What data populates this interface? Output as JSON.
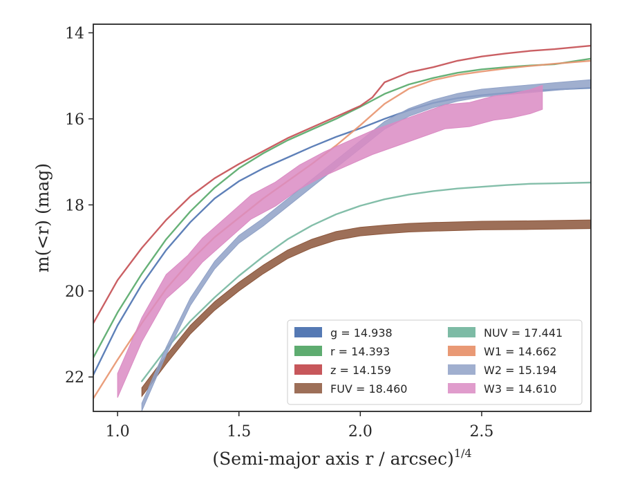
{
  "chart_data": {
    "type": "line",
    "title": "",
    "xlabel": "(Semi-major axis r / arcsec)",
    "xlabel_superscript": "1/4",
    "ylabel": "m(<r) (mag)",
    "xlim": [
      0.9,
      2.95
    ],
    "ylim": [
      22.8,
      13.8
    ],
    "y_inverted": true,
    "x_ticks": [
      1.0,
      1.5,
      2.0,
      2.5
    ],
    "x_tick_labels": [
      "1.0",
      "1.5",
      "2.0",
      "2.5"
    ],
    "y_ticks": [
      14,
      16,
      18,
      20,
      22
    ],
    "y_tick_labels": [
      "14",
      "16",
      "18",
      "20",
      "22"
    ],
    "grid": false,
    "legend_position": "lower-right",
    "legend_columns": 2,
    "series": [
      {
        "name": "g",
        "legend": "g = 14.938",
        "color": "#4c72b0",
        "style": "line",
        "points": [
          [
            0.9,
            21.95
          ],
          [
            1.0,
            20.8
          ],
          [
            1.1,
            19.85
          ],
          [
            1.2,
            19.05
          ],
          [
            1.3,
            18.4
          ],
          [
            1.4,
            17.85
          ],
          [
            1.5,
            17.45
          ],
          [
            1.6,
            17.15
          ],
          [
            1.7,
            16.9
          ],
          [
            1.8,
            16.65
          ],
          [
            1.9,
            16.42
          ],
          [
            2.0,
            16.22
          ],
          [
            2.1,
            16.0
          ],
          [
            2.2,
            15.8
          ],
          [
            2.3,
            15.63
          ],
          [
            2.4,
            15.52
          ],
          [
            2.5,
            15.45
          ],
          [
            2.6,
            15.4
          ],
          [
            2.7,
            15.35
          ],
          [
            2.8,
            15.32
          ],
          [
            2.95,
            15.28
          ]
        ]
      },
      {
        "name": "r",
        "legend": "r = 14.393",
        "color": "#55a868",
        "style": "line",
        "points": [
          [
            0.9,
            21.55
          ],
          [
            1.0,
            20.5
          ],
          [
            1.1,
            19.6
          ],
          [
            1.2,
            18.8
          ],
          [
            1.3,
            18.15
          ],
          [
            1.4,
            17.6
          ],
          [
            1.5,
            17.15
          ],
          [
            1.6,
            16.8
          ],
          [
            1.7,
            16.5
          ],
          [
            1.8,
            16.25
          ],
          [
            1.9,
            16.0
          ],
          [
            2.0,
            15.72
          ],
          [
            2.1,
            15.42
          ],
          [
            2.2,
            15.2
          ],
          [
            2.3,
            15.05
          ],
          [
            2.4,
            14.93
          ],
          [
            2.5,
            14.85
          ],
          [
            2.6,
            14.8
          ],
          [
            2.7,
            14.76
          ],
          [
            2.8,
            14.73
          ],
          [
            2.95,
            14.6
          ]
        ]
      },
      {
        "name": "z",
        "legend": "z = 14.159",
        "color": "#c44e52",
        "style": "line",
        "points": [
          [
            0.9,
            20.75
          ],
          [
            1.0,
            19.75
          ],
          [
            1.1,
            19.0
          ],
          [
            1.2,
            18.35
          ],
          [
            1.3,
            17.8
          ],
          [
            1.4,
            17.38
          ],
          [
            1.5,
            17.05
          ],
          [
            1.6,
            16.75
          ],
          [
            1.7,
            16.45
          ],
          [
            1.8,
            16.2
          ],
          [
            1.9,
            15.95
          ],
          [
            2.0,
            15.7
          ],
          [
            2.05,
            15.5
          ],
          [
            2.1,
            15.15
          ],
          [
            2.2,
            14.92
          ],
          [
            2.3,
            14.8
          ],
          [
            2.4,
            14.65
          ],
          [
            2.5,
            14.55
          ],
          [
            2.6,
            14.48
          ],
          [
            2.7,
            14.42
          ],
          [
            2.8,
            14.38
          ],
          [
            2.95,
            14.3
          ]
        ]
      },
      {
        "name": "FUV",
        "legend": "FUV = 18.460",
        "color": "#8c563b",
        "style": "band",
        "halfwidth": 0.1,
        "points": [
          [
            1.1,
            22.35
          ],
          [
            1.2,
            21.6
          ],
          [
            1.3,
            20.9
          ],
          [
            1.4,
            20.35
          ],
          [
            1.5,
            19.9
          ],
          [
            1.6,
            19.5
          ],
          [
            1.7,
            19.15
          ],
          [
            1.8,
            18.9
          ],
          [
            1.9,
            18.72
          ],
          [
            2.0,
            18.62
          ],
          [
            2.1,
            18.57
          ],
          [
            2.2,
            18.53
          ],
          [
            2.3,
            18.51
          ],
          [
            2.5,
            18.48
          ],
          [
            2.7,
            18.47
          ],
          [
            2.95,
            18.45
          ]
        ]
      },
      {
        "name": "NUV",
        "legend": "NUV = 17.441",
        "color": "#76b7a0",
        "style": "line",
        "points": [
          [
            1.1,
            22.1
          ],
          [
            1.2,
            21.35
          ],
          [
            1.3,
            20.7
          ],
          [
            1.4,
            20.15
          ],
          [
            1.5,
            19.65
          ],
          [
            1.6,
            19.2
          ],
          [
            1.7,
            18.8
          ],
          [
            1.8,
            18.48
          ],
          [
            1.9,
            18.22
          ],
          [
            2.0,
            18.02
          ],
          [
            2.1,
            17.87
          ],
          [
            2.2,
            17.76
          ],
          [
            2.3,
            17.68
          ],
          [
            2.4,
            17.62
          ],
          [
            2.5,
            17.58
          ],
          [
            2.6,
            17.54
          ],
          [
            2.7,
            17.51
          ],
          [
            2.8,
            17.5
          ],
          [
            2.95,
            17.48
          ]
        ]
      },
      {
        "name": "W1",
        "legend": "W1 = 14.662",
        "color": "#e8936e",
        "style": "line",
        "points": [
          [
            0.9,
            22.5
          ],
          [
            1.0,
            21.6
          ],
          [
            1.1,
            20.75
          ],
          [
            1.2,
            19.95
          ],
          [
            1.3,
            19.3
          ],
          [
            1.4,
            18.75
          ],
          [
            1.5,
            18.3
          ],
          [
            1.6,
            17.85
          ],
          [
            1.7,
            17.45
          ],
          [
            1.8,
            17.05
          ],
          [
            1.9,
            16.62
          ],
          [
            2.0,
            16.15
          ],
          [
            2.1,
            15.65
          ],
          [
            2.2,
            15.3
          ],
          [
            2.3,
            15.1
          ],
          [
            2.4,
            14.98
          ],
          [
            2.5,
            14.9
          ],
          [
            2.6,
            14.83
          ],
          [
            2.7,
            14.77
          ],
          [
            2.8,
            14.72
          ],
          [
            2.95,
            14.65
          ]
        ]
      },
      {
        "name": "W2",
        "legend": "W2 = 15.194",
        "color": "#8fa1c7",
        "style": "band",
        "halfwidth": 0.09,
        "points": [
          [
            1.1,
            22.7
          ],
          [
            1.2,
            21.4
          ],
          [
            1.3,
            20.25
          ],
          [
            1.4,
            19.4
          ],
          [
            1.5,
            18.8
          ],
          [
            1.6,
            18.4
          ],
          [
            1.7,
            17.95
          ],
          [
            1.8,
            17.5
          ],
          [
            1.9,
            17.05
          ],
          [
            2.0,
            16.6
          ],
          [
            2.1,
            16.15
          ],
          [
            2.2,
            15.85
          ],
          [
            2.3,
            15.65
          ],
          [
            2.4,
            15.5
          ],
          [
            2.5,
            15.4
          ],
          [
            2.6,
            15.35
          ],
          [
            2.7,
            15.3
          ],
          [
            2.8,
            15.25
          ],
          [
            2.95,
            15.18
          ]
        ]
      },
      {
        "name": "W3",
        "legend": "W3 = 14.610",
        "color": "#da8bc3",
        "style": "band",
        "halfwidth": 0.28,
        "points": [
          [
            1.0,
            22.2
          ],
          [
            1.1,
            20.9
          ],
          [
            1.2,
            19.9
          ],
          [
            1.29,
            19.45
          ],
          [
            1.35,
            19.05
          ],
          [
            1.45,
            18.55
          ],
          [
            1.55,
            18.05
          ],
          [
            1.65,
            17.75
          ],
          [
            1.75,
            17.35
          ],
          [
            1.85,
            17.05
          ],
          [
            1.95,
            16.8
          ],
          [
            2.05,
            16.55
          ],
          [
            2.15,
            16.35
          ],
          [
            2.25,
            16.15
          ],
          [
            2.35,
            15.95
          ],
          [
            2.45,
            15.9
          ],
          [
            2.55,
            15.75
          ],
          [
            2.62,
            15.7
          ],
          [
            2.7,
            15.6
          ],
          [
            2.75,
            15.5
          ]
        ]
      }
    ]
  }
}
